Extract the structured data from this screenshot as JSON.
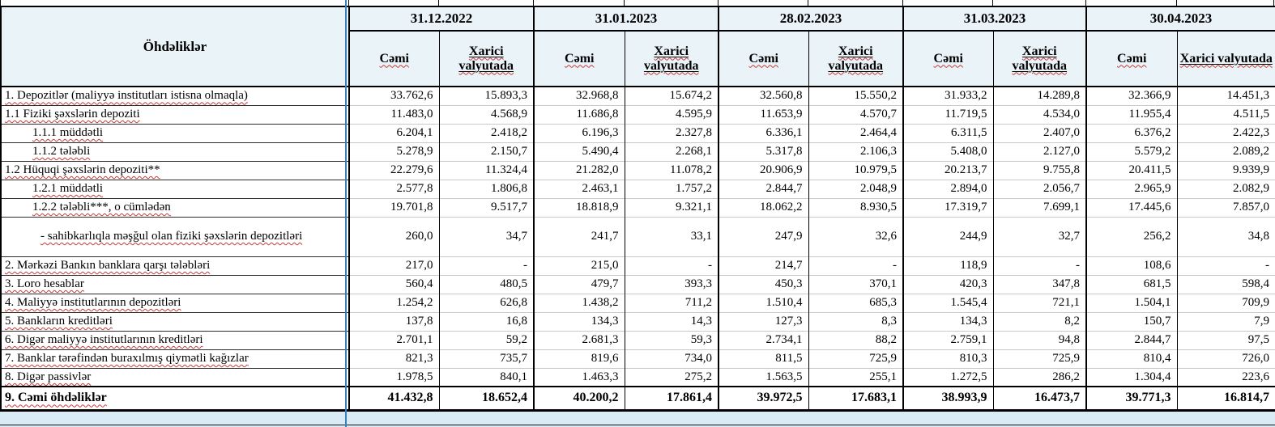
{
  "table": {
    "title_column_header": "Öhdəliklər",
    "dates": [
      "31.12.2022",
      "31.01.2023",
      "28.02.2023",
      "31.03.2023",
      "30.04.2023"
    ],
    "subheaders": {
      "total": "Cəmi",
      "foreign_currency": "Xarici valyutada"
    }
  },
  "rows": [
    {
      "label": "1. Depozitlər (maliyyə institutları istisna olmaqla)",
      "level": 0,
      "values": [
        "33.762,6",
        "15.893,3",
        "32.968,8",
        "15.674,2",
        "32.560,8",
        "15.550,2",
        "31.933,2",
        "14.289,8",
        "32.366,9",
        "14.451,3"
      ]
    },
    {
      "label": "1.1 Fiziki şəxslərin depoziti",
      "level": 0,
      "values": [
        "11.483,0",
        "4.568,9",
        "11.686,8",
        "4.595,9",
        "11.653,9",
        "4.570,7",
        "11.719,5",
        "4.534,0",
        "11.955,4",
        "4.511,5"
      ]
    },
    {
      "label": "1.1.1 müddətli",
      "level": 2,
      "values": [
        "6.204,1",
        "2.418,2",
        "6.196,3",
        "2.327,8",
        "6.336,1",
        "2.464,4",
        "6.311,5",
        "2.407,0",
        "6.376,2",
        "2.422,3"
      ]
    },
    {
      "label": "1.1.2 tələbli",
      "level": 2,
      "values": [
        "5.278,9",
        "2.150,7",
        "5.490,4",
        "2.268,1",
        "5.317,8",
        "2.106,3",
        "5.408,0",
        "2.127,0",
        "5.579,2",
        "2.089,2"
      ]
    },
    {
      "label": "1.2 Hüquqi şəxslərin depoziti**",
      "level": 0,
      "values": [
        "22.279,6",
        "11.324,4",
        "21.282,0",
        "11.078,2",
        "20.906,9",
        "10.979,5",
        "20.213,7",
        "9.755,8",
        "20.411,5",
        "9.939,9"
      ]
    },
    {
      "label": "1.2.1 müddətli",
      "level": 2,
      "values": [
        "2.577,8",
        "1.806,8",
        "2.463,1",
        "1.757,2",
        "2.844,7",
        "2.048,9",
        "2.894,0",
        "2.056,7",
        "2.965,9",
        "2.082,9"
      ]
    },
    {
      "label": "1.2.2 tələbli***, o cümlədən",
      "level": 2,
      "values": [
        "19.701,8",
        "9.517,7",
        "18.818,9",
        "9.321,1",
        "18.062,2",
        "8.930,5",
        "17.319,7",
        "7.699,1",
        "17.445,6",
        "7.857,0"
      ]
    },
    {
      "label": "- sahibkarlıqla məşğul olan fiziki şəxslərin depozitləri",
      "level": 3,
      "tall": true,
      "values": [
        "260,0",
        "34,7",
        "241,7",
        "33,1",
        "247,9",
        "32,6",
        "244,9",
        "32,7",
        "256,2",
        "34,8"
      ]
    },
    {
      "label": "2. Mərkəzi Bankın banklara qarşı tələbləri",
      "level": 0,
      "values": [
        "217,0",
        "-",
        "215,0",
        "-",
        "214,7",
        "-",
        "118,9",
        "-",
        "108,6",
        "-"
      ]
    },
    {
      "label": "3. Loro hesablar",
      "level": 0,
      "values": [
        "560,4",
        "480,5",
        "479,7",
        "393,3",
        "450,3",
        "370,1",
        "420,3",
        "347,8",
        "681,5",
        "598,4"
      ]
    },
    {
      "label": "4. Maliyyə institutlarının  depozitləri",
      "level": 0,
      "values": [
        "1.254,2",
        "626,8",
        "1.438,2",
        "711,2",
        "1.510,4",
        "685,3",
        "1.545,4",
        "721,1",
        "1.504,1",
        "709,9"
      ]
    },
    {
      "label": "5. Bankların kreditləri",
      "level": 0,
      "values": [
        "137,8",
        "16,8",
        "134,3",
        "14,3",
        "127,3",
        "8,3",
        "134,3",
        "8,2",
        "150,7",
        "7,9"
      ]
    },
    {
      "label": "6. Digər maliyyə institutlarının kreditləri",
      "level": 0,
      "values": [
        "2.701,1",
        "59,2",
        "2.681,3",
        "59,3",
        "2.734,1",
        "88,2",
        "2.759,1",
        "94,8",
        "2.844,7",
        "97,5"
      ]
    },
    {
      "label": "7. Banklar tərəfindən buraxılmış qiymətli kağızlar",
      "level": 0,
      "values": [
        "821,3",
        "735,7",
        "819,6",
        "734,0",
        "811,5",
        "725,9",
        "810,3",
        "725,9",
        "810,4",
        "726,0"
      ]
    },
    {
      "label": "8. Digər passivlər",
      "level": 0,
      "values": [
        "1.978,5",
        "840,1",
        "1.463,3",
        "275,2",
        "1.563,5",
        "255,1",
        "1.272,5",
        "286,2",
        "1.304,4",
        "223,6"
      ]
    },
    {
      "label": "9. Cəmi öhdəliklər",
      "level": 0,
      "total": true,
      "values": [
        "41.432,8",
        "18.652,4",
        "40.200,2",
        "17.861,4",
        "39.972,5",
        "17.683,1",
        "38.993,9",
        "16.473,7",
        "39.771,3",
        "16.814,7"
      ]
    }
  ],
  "colors": {
    "header_background": "#e9f3f8",
    "bottom_strip_background": "#d9ecf5",
    "print_boundary_blue": "#3d7ebc",
    "spellcheck_red": "#c43b3b"
  }
}
